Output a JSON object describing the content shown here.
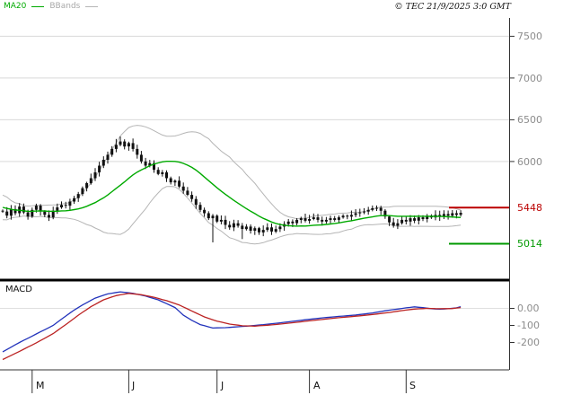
{
  "legend": {
    "ma20_label": "MA20",
    "bbands_label": "BBands"
  },
  "copyright_text": "© TEC 21/9/2025 3:0 GMT",
  "indicator_label": "MACD",
  "colors": {
    "ma20": "#00aa00",
    "bbands": "#b5b5b5",
    "candle": "#111111",
    "macd_line": "#2233bb",
    "signal_line": "#bb2222",
    "resistance": "#bb0000",
    "support": "#009900",
    "grid": "#d9d9d9",
    "axis": "#333333",
    "axis_label": "#8c8c8c"
  },
  "chart_data": {
    "type": "candlestick",
    "title": "",
    "price": {
      "ylim": [
        4600,
        7720
      ],
      "gridlines": [
        7500,
        7000,
        6500,
        6000
      ],
      "first_open": 5410,
      "close": [
        5400,
        5350,
        5430,
        5380,
        5460,
        5390,
        5340,
        5420,
        5470,
        5400,
        5360,
        5330,
        5410,
        5450,
        5480,
        5470,
        5520,
        5560,
        5610,
        5680,
        5740,
        5800,
        5870,
        5950,
        6020,
        6080,
        6150,
        6200,
        6240,
        6180,
        6220,
        6150,
        6080,
        6000,
        5950,
        5980,
        5900,
        5850,
        5870,
        5800,
        5750,
        5770,
        5700,
        5650,
        5600,
        5550,
        5480,
        5420,
        5380,
        5320,
        5350,
        5280,
        5300,
        5240,
        5210,
        5260,
        5230,
        5190,
        5220,
        5170,
        5200,
        5150,
        5180,
        5210,
        5160,
        5190,
        5220,
        5250,
        5280,
        5260,
        5300,
        5320,
        5290,
        5310,
        5330,
        5300,
        5280,
        5300,
        5320,
        5300,
        5330,
        5350,
        5340,
        5360,
        5380,
        5390,
        5400,
        5420,
        5440,
        5445,
        5410,
        5340,
        5270,
        5230,
        5260,
        5300,
        5280,
        5320,
        5290,
        5330,
        5310,
        5350,
        5330,
        5360,
        5340,
        5370,
        5350,
        5380,
        5360,
        5385
      ],
      "pre_close": [
        5650,
        5600,
        5630,
        5560,
        5500,
        5530,
        5460,
        5400,
        5430,
        5360,
        5380,
        5420,
        5390,
        5440,
        5400,
        5450,
        5420,
        5380,
        5430,
        5410
      ],
      "wick_overrides": {
        "27": {
          "high": 6270
        },
        "28": {
          "high": 6300
        },
        "29": {
          "high": 6265
        },
        "50": {
          "low": 5030
        },
        "57": {
          "low": 5070
        }
      },
      "overlays": {
        "ma_window": 20,
        "bband_k": 2
      },
      "levels": [
        {
          "label": "5448",
          "value": 5448,
          "kind": "resistance"
        },
        {
          "label": "5014",
          "value": 5014,
          "kind": "support"
        }
      ]
    },
    "macd": {
      "ylim": [
        -350,
        150
      ],
      "tick_values": [
        0,
        -100,
        -200
      ],
      "tick_labels": [
        "0.00",
        "-100",
        "-200"
      ],
      "macd_anchors": [
        [
          0,
          -255
        ],
        [
          4,
          -200
        ],
        [
          8,
          -150
        ],
        [
          12,
          -100
        ],
        [
          15,
          -45
        ],
        [
          17,
          -10
        ],
        [
          19,
          20
        ],
        [
          22,
          60
        ],
        [
          25,
          85
        ],
        [
          28,
          97
        ],
        [
          31,
          88
        ],
        [
          34,
          72
        ],
        [
          37,
          50
        ],
        [
          39,
          28
        ],
        [
          41,
          5
        ],
        [
          43,
          -40
        ],
        [
          45,
          -70
        ],
        [
          47,
          -95
        ],
        [
          50,
          -115
        ],
        [
          53,
          -113
        ],
        [
          56,
          -108
        ],
        [
          60,
          -100
        ],
        [
          64,
          -90
        ],
        [
          68,
          -79
        ],
        [
          72,
          -67
        ],
        [
          76,
          -56
        ],
        [
          80,
          -47
        ],
        [
          84,
          -39
        ],
        [
          88,
          -27
        ],
        [
          91,
          -14
        ],
        [
          94,
          -4
        ],
        [
          96,
          3
        ],
        [
          98,
          9
        ],
        [
          100,
          4
        ],
        [
          102,
          -2
        ],
        [
          104,
          -5
        ],
        [
          106,
          -2
        ],
        [
          108,
          3
        ],
        [
          109,
          10
        ]
      ],
      "signal_anchors": [
        [
          0,
          -300
        ],
        [
          4,
          -252
        ],
        [
          8,
          -202
        ],
        [
          12,
          -148
        ],
        [
          15,
          -95
        ],
        [
          18,
          -40
        ],
        [
          21,
          10
        ],
        [
          24,
          50
        ],
        [
          27,
          75
        ],
        [
          30,
          88
        ],
        [
          33,
          80
        ],
        [
          36,
          65
        ],
        [
          39,
          45
        ],
        [
          42,
          20
        ],
        [
          45,
          -15
        ],
        [
          48,
          -50
        ],
        [
          51,
          -75
        ],
        [
          54,
          -92
        ],
        [
          57,
          -102
        ],
        [
          60,
          -104
        ],
        [
          64,
          -97
        ],
        [
          68,
          -87
        ],
        [
          72,
          -76
        ],
        [
          76,
          -65
        ],
        [
          80,
          -55
        ],
        [
          84,
          -46
        ],
        [
          88,
          -36
        ],
        [
          92,
          -24
        ],
        [
          95,
          -13
        ],
        [
          98,
          -4
        ],
        [
          101,
          0
        ],
        [
          104,
          -2
        ],
        [
          107,
          -1
        ],
        [
          109,
          5
        ]
      ]
    },
    "months": [
      {
        "label": "M",
        "candle_index": 7
      },
      {
        "label": "J",
        "candle_index": 30
      },
      {
        "label": "J",
        "candle_index": 51
      },
      {
        "label": "A",
        "candle_index": 73
      },
      {
        "label": "S",
        "candle_index": 96
      }
    ]
  }
}
